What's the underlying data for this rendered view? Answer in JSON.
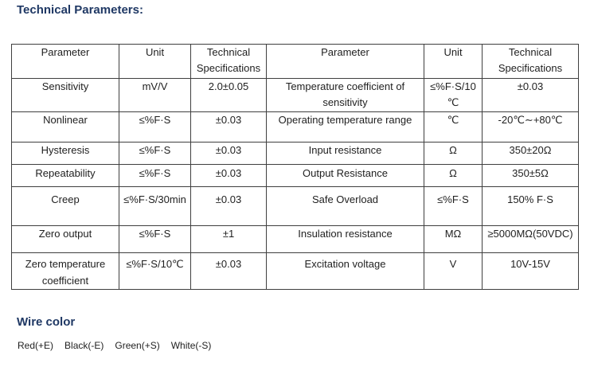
{
  "title": "Technical Parameters:",
  "colors": {
    "heading": "#1f3864",
    "text": "#1f1f1f",
    "table_border": "#3f3f3f",
    "background": "#ffffff"
  },
  "table": {
    "header": [
      "Parameter",
      "Unit",
      "Technical\nSpecifications",
      "Parameter",
      "Unit",
      "Technical\nSpecifications"
    ],
    "rows": [
      [
        "Sensitivity",
        "mV/V",
        "2.0±0.05",
        "Temperature coefficient of\nsensitivity",
        "≤%F·S/10\n℃",
        "±0.03"
      ],
      [
        "Nonlinear",
        "≤%F·S",
        "±0.03",
        "Operating temperature range",
        "℃",
        "-20℃∼+80℃"
      ],
      [
        "Hysteresis",
        "≤%F·S",
        "±0.03",
        "Input resistance",
        "Ω",
        "350±20Ω"
      ],
      [
        "Repeatability",
        "≤%F·S",
        "±0.03",
        "Output Resistance",
        "Ω",
        "350±5Ω"
      ],
      [
        "Creep",
        "≤%F·S/30min",
        "±0.03",
        "Safe Overload",
        "≤%F·S",
        "150% F·S"
      ],
      [
        "Zero output",
        "≤%F·S",
        "±1",
        "Insulation resistance",
        "MΩ",
        "≥5000MΩ(50VDC)"
      ],
      [
        "Zero temperature\ncoefficient",
        "≤%F·S/10℃",
        "±0.03",
        "Excitation voltage",
        "V",
        "10V-15V"
      ]
    ]
  },
  "wire_section": {
    "heading": "Wire color",
    "items": [
      "Red(+E)",
      "Black(-E)",
      "Green(+S)",
      "White(-S)"
    ]
  }
}
